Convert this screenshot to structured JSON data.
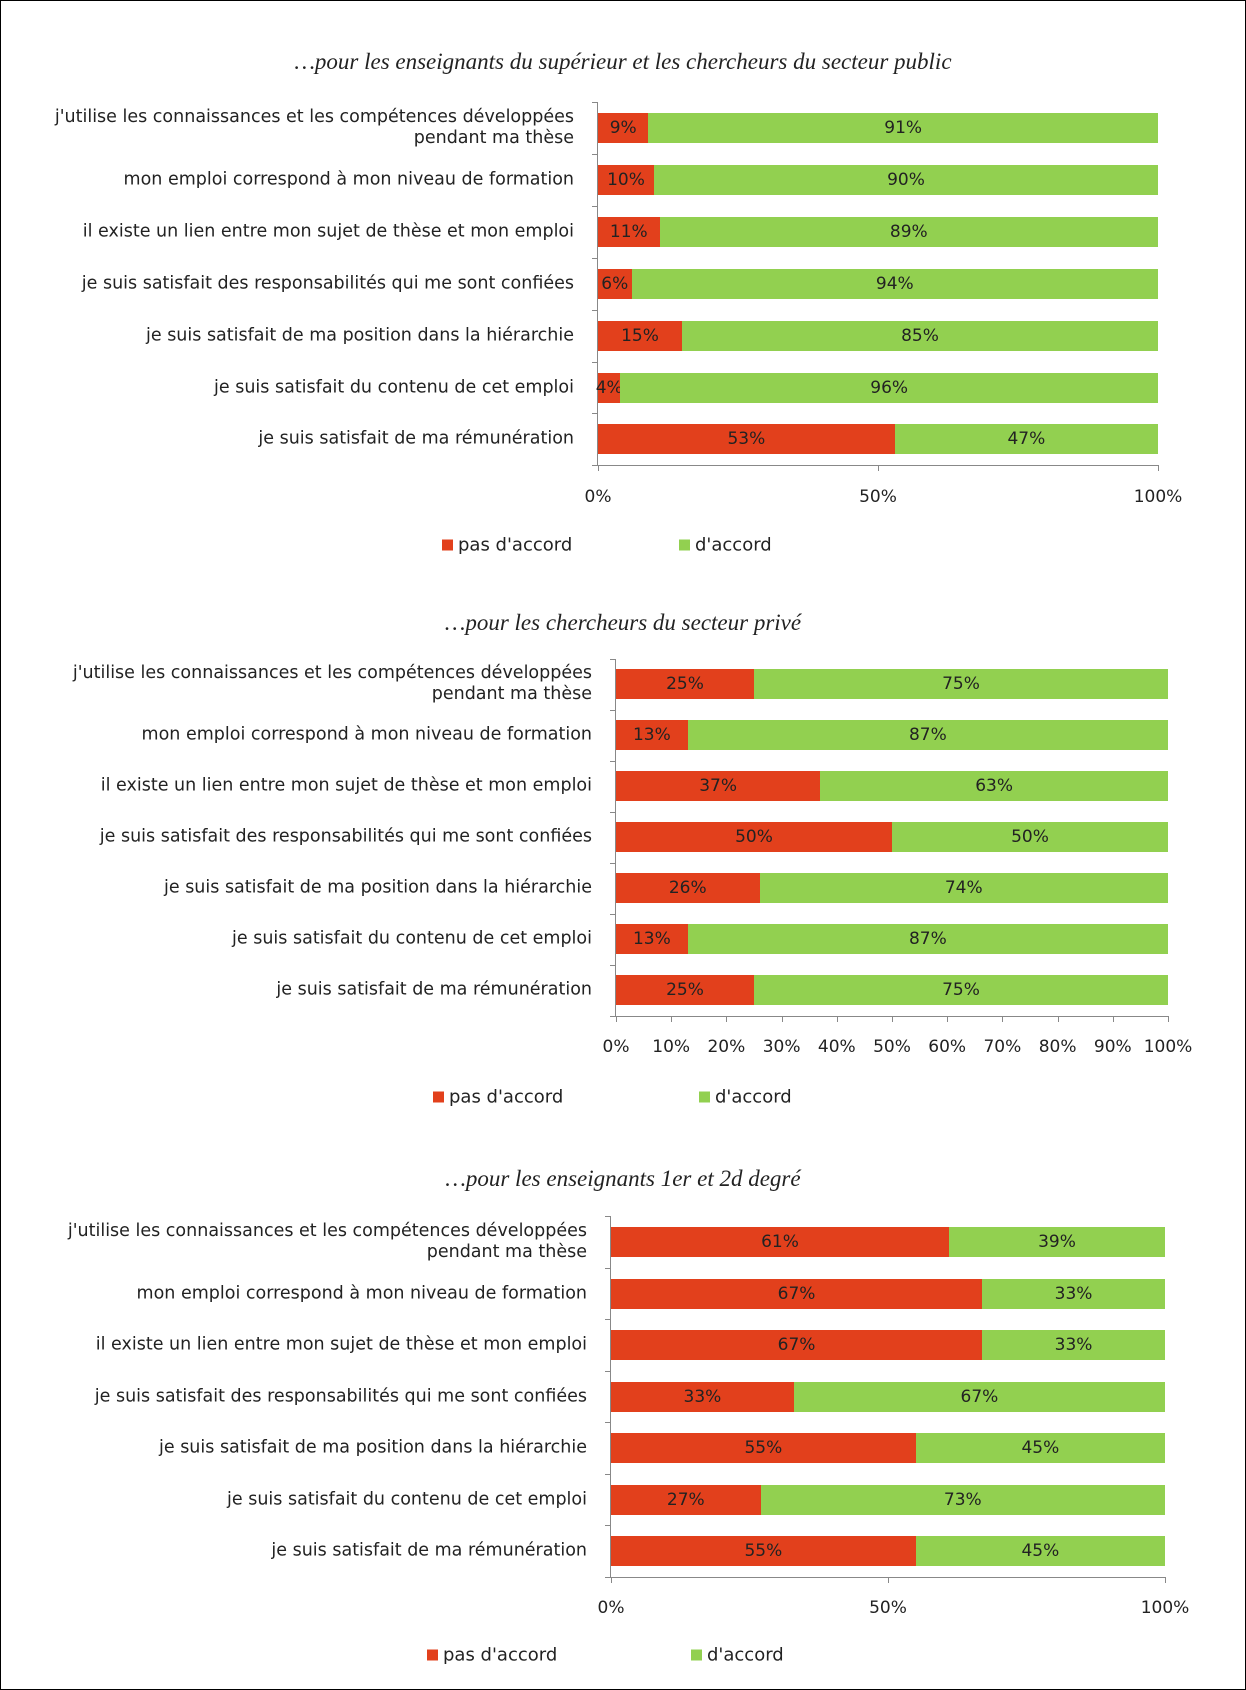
{
  "chart_data": [
    {
      "type": "stacked-bar-horizontal",
      "title": "…pour les enseignants du supérieur et les chercheurs du secteur public",
      "categories": [
        "j'utilise les connaissances et les compétences développées pendant ma thèse",
        "mon emploi correspond à mon niveau de formation",
        "il existe un lien entre mon sujet de thèse et mon emploi",
        "je suis satisfait des responsabilités qui me sont confiées",
        "je suis satisfait de ma position dans la hiérarchie",
        "je suis satisfait du contenu de cet emploi",
        "je suis satisfait de ma rémunération"
      ],
      "series": [
        {
          "name": "pas d'accord",
          "color": "#e2401c",
          "values": [
            9,
            10,
            11,
            6,
            15,
            4,
            53
          ],
          "value_labels": [
            "9%",
            "10%",
            "11%",
            "6%",
            "15%",
            "4%",
            "53%"
          ]
        },
        {
          "name": "d'accord",
          "color": "#92d050",
          "values": [
            91,
            90,
            89,
            94,
            85,
            96,
            47
          ],
          "value_labels": [
            "91%",
            "90%",
            "89%",
            "94%",
            "85%",
            "96%",
            "47%"
          ]
        }
      ],
      "xlim": [
        0,
        100
      ],
      "xticks": [
        {
          "value": 0,
          "label": "0%"
        },
        {
          "value": 50,
          "label": "50%"
        },
        {
          "value": 100,
          "label": "100%"
        }
      ],
      "legend": "bottom"
    },
    {
      "type": "stacked-bar-horizontal",
      "title": "…pour les chercheurs du secteur privé",
      "categories": [
        "j'utilise les connaissances et les compétences développées pendant ma thèse",
        "mon emploi correspond à mon niveau de formation",
        "il existe un lien entre mon sujet de thèse et mon emploi",
        "je suis satisfait des responsabilités qui me sont confiées",
        "je suis satisfait de ma position dans la hiérarchie",
        "je suis satisfait du contenu de cet emploi",
        "je suis satisfait de ma rémunération"
      ],
      "series": [
        {
          "name": "pas d'accord",
          "color": "#e2401c",
          "values": [
            25,
            13,
            37,
            50,
            26,
            13,
            25
          ],
          "value_labels": [
            "25%",
            "13%",
            "37%",
            "50%",
            "26%",
            "13%",
            "25%"
          ]
        },
        {
          "name": "d'accord",
          "color": "#92d050",
          "values": [
            75,
            87,
            63,
            50,
            74,
            87,
            75
          ],
          "value_labels": [
            "75%",
            "87%",
            "63%",
            "50%",
            "74%",
            "87%",
            "75%"
          ]
        }
      ],
      "xlim": [
        0,
        100
      ],
      "xticks": [
        {
          "value": 0,
          "label": "0%"
        },
        {
          "value": 10,
          "label": "10%"
        },
        {
          "value": 20,
          "label": "20%"
        },
        {
          "value": 30,
          "label": "30%"
        },
        {
          "value": 40,
          "label": "40%"
        },
        {
          "value": 50,
          "label": "50%"
        },
        {
          "value": 60,
          "label": "60%"
        },
        {
          "value": 70,
          "label": "70%"
        },
        {
          "value": 80,
          "label": "80%"
        },
        {
          "value": 90,
          "label": "90%"
        },
        {
          "value": 100,
          "label": "100%"
        }
      ],
      "legend": "bottom"
    },
    {
      "type": "stacked-bar-horizontal",
      "title": "…pour les enseignants 1er et 2d degré",
      "categories": [
        "j'utilise les connaissances et les compétences développées pendant ma thèse",
        "mon emploi correspond à mon niveau de formation",
        "il existe un lien entre mon sujet de thèse et mon emploi",
        "je suis satisfait des responsabilités qui me sont confiées",
        "je suis satisfait de ma position dans la hiérarchie",
        "je suis satisfait du contenu de cet emploi",
        "je suis satisfait de ma rémunération"
      ],
      "series": [
        {
          "name": "pas d'accord",
          "color": "#e2401c",
          "values": [
            61,
            67,
            67,
            33,
            55,
            27,
            55
          ],
          "value_labels": [
            "61%",
            "67%",
            "67%",
            "33%",
            "55%",
            "27%",
            "55%"
          ]
        },
        {
          "name": "d'accord",
          "color": "#92d050",
          "values": [
            39,
            33,
            33,
            67,
            45,
            73,
            45
          ],
          "value_labels": [
            "39%",
            "33%",
            "33%",
            "67%",
            "45%",
            "73%",
            "45%"
          ]
        }
      ],
      "xlim": [
        0,
        100
      ],
      "xticks": [
        {
          "value": 0,
          "label": "0%"
        },
        {
          "value": 50,
          "label": "50%"
        },
        {
          "value": 100,
          "label": "100%"
        }
      ],
      "legend": "bottom"
    }
  ]
}
